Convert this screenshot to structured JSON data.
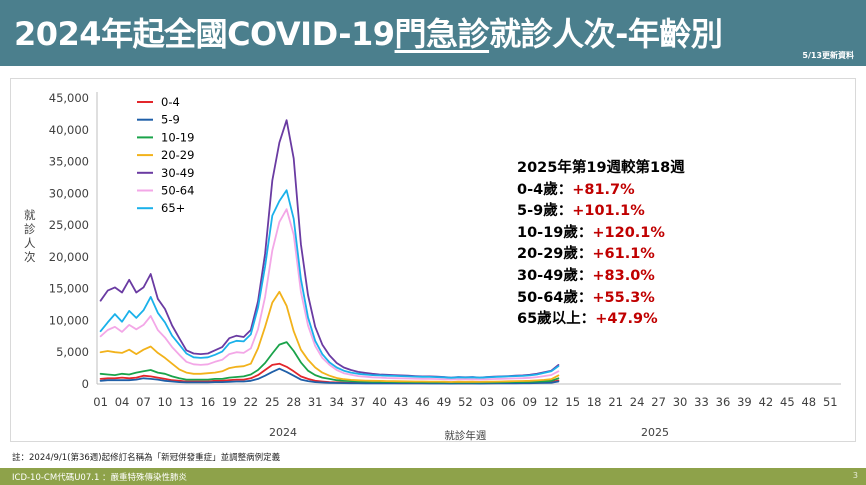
{
  "header": {
    "title_pre": "2024年起全國COVID-19",
    "title_ul": "門急診",
    "title_post": "就診人次-年齡別",
    "update_note": "5/13更新資料",
    "bg_color": "#4b7f8d"
  },
  "summary": {
    "title": "2025年第19週較第18週",
    "rows": [
      {
        "label": "0-4歲：",
        "value": "+81.7%"
      },
      {
        "label": "5-9歲：",
        "value": "+101.1%"
      },
      {
        "label": "10-19歲：",
        "value": "+120.1%"
      },
      {
        "label": "20-29歲：",
        "value": "+61.1%"
      },
      {
        "label": "30-49歲：",
        "value": "+83.0%"
      },
      {
        "label": "50-64歲：",
        "value": "+55.3%"
      },
      {
        "label": "65歲以上：",
        "value": "+47.9%"
      }
    ]
  },
  "footnote": "註：2024/9/1(第36週)起修訂名稱為「新冠併發重症」並調整病例定義",
  "footer": {
    "text": "ICD-10-CM代碼U07.1 ：嚴重特殊傳染性肺炎",
    "page": "3",
    "bg_color": "#8ea24a"
  },
  "chart_data": {
    "type": "line",
    "ylabel": "就診人次",
    "xlabel": "就診年週",
    "year_labels": [
      "2024",
      "2025"
    ],
    "y_ticks": [
      "0",
      "5,000",
      "10,000",
      "15,000",
      "20,000",
      "25,000",
      "30,000",
      "35,000",
      "40,000",
      "45,000"
    ],
    "ylim": [
      0,
      45000
    ],
    "x_tick_labels": [
      "01",
      "04",
      "07",
      "10",
      "13",
      "16",
      "19",
      "22",
      "25",
      "28",
      "31",
      "34",
      "37",
      "40",
      "43",
      "46",
      "49",
      "52",
      "03",
      "06",
      "09",
      "12",
      "15",
      "18",
      "21",
      "24",
      "27",
      "30",
      "33",
      "36",
      "39",
      "42",
      "45",
      "48",
      "51"
    ],
    "legend_position": "top-left",
    "series": [
      {
        "name": "0-4",
        "color": "#e3262b",
        "values": [
          800,
          900,
          900,
          1000,
          900,
          1000,
          1300,
          1200,
          1000,
          800,
          600,
          500,
          400,
          400,
          400,
          400,
          500,
          500,
          600,
          700,
          700,
          900,
          1400,
          2200,
          3000,
          3200,
          2700,
          2000,
          1200,
          800,
          500,
          400,
          300,
          250,
          200,
          180,
          170,
          160,
          150,
          140,
          140,
          140,
          130,
          130,
          130,
          130,
          120,
          120,
          120,
          100,
          120,
          110,
          120,
          100,
          120,
          130,
          140,
          150,
          160,
          160,
          180,
          200,
          250,
          300,
          550
        ]
      },
      {
        "name": "5-9",
        "color": "#1f5fa8",
        "values": [
          500,
          600,
          600,
          600,
          600,
          700,
          900,
          800,
          700,
          500,
          400,
          300,
          250,
          250,
          250,
          250,
          300,
          300,
          350,
          400,
          400,
          500,
          800,
          1300,
          1900,
          2400,
          1900,
          1300,
          700,
          450,
          300,
          230,
          190,
          160,
          140,
          130,
          120,
          110,
          100,
          100,
          100,
          90,
          90,
          90,
          90,
          90,
          80,
          80,
          80,
          70,
          80,
          80,
          80,
          70,
          80,
          90,
          100,
          110,
          110,
          120,
          130,
          150,
          170,
          200,
          400
        ]
      },
      {
        "name": "10-19",
        "color": "#1aa34a",
        "values": [
          1600,
          1500,
          1400,
          1600,
          1500,
          1800,
          2000,
          2200,
          1800,
          1600,
          1200,
          900,
          700,
          700,
          700,
          700,
          800,
          800,
          1000,
          1100,
          1200,
          1500,
          2200,
          3300,
          4800,
          6200,
          6600,
          5200,
          3400,
          2100,
          1400,
          1000,
          800,
          600,
          500,
          450,
          400,
          380,
          350,
          330,
          320,
          310,
          300,
          290,
          280,
          280,
          270,
          260,
          250,
          230,
          250,
          240,
          250,
          230,
          250,
          260,
          280,
          300,
          310,
          320,
          340,
          380,
          430,
          500,
          900
        ]
      },
      {
        "name": "20-29",
        "color": "#f2b21b",
        "values": [
          5000,
          5200,
          5000,
          4900,
          5400,
          4700,
          5400,
          5900,
          4900,
          4100,
          3200,
          2300,
          1800,
          1600,
          1600,
          1700,
          1800,
          2000,
          2500,
          2700,
          2800,
          3200,
          5600,
          9000,
          12800,
          14500,
          12300,
          8300,
          5400,
          3800,
          2600,
          1800,
          1300,
          950,
          750,
          650,
          580,
          540,
          500,
          480,
          460,
          440,
          420,
          410,
          400,
          390,
          380,
          370,
          360,
          320,
          360,
          340,
          360,
          330,
          360,
          380,
          400,
          430,
          450,
          470,
          500,
          560,
          640,
          750,
          1350
        ]
      },
      {
        "name": "30-49",
        "color": "#6a3ba2",
        "values": [
          13100,
          14700,
          15200,
          14400,
          16400,
          14400,
          15200,
          17300,
          13400,
          11800,
          9200,
          7200,
          5300,
          4800,
          4700,
          4800,
          5300,
          5800,
          7200,
          7600,
          7400,
          8500,
          13000,
          20500,
          32000,
          38000,
          41500,
          35500,
          22000,
          14000,
          9000,
          6200,
          4500,
          3300,
          2600,
          2200,
          1900,
          1750,
          1600,
          1500,
          1450,
          1400,
          1350,
          1300,
          1250,
          1200,
          1200,
          1150,
          1100,
          1000,
          1100,
          1050,
          1100,
          1000,
          1100,
          1150,
          1200,
          1250,
          1300,
          1350,
          1450,
          1600,
          1850,
          2100,
          3000
        ]
      },
      {
        "name": "50-64",
        "color": "#f3a7e7",
        "values": [
          7500,
          8500,
          9000,
          8200,
          9300,
          8600,
          9300,
          10700,
          8500,
          7300,
          5800,
          4600,
          3500,
          3100,
          3000,
          3100,
          3500,
          3800,
          4700,
          5000,
          4900,
          5600,
          8600,
          13700,
          21000,
          25500,
          27500,
          23500,
          14500,
          9200,
          6000,
          4100,
          3000,
          2200,
          1700,
          1450,
          1250,
          1150,
          1050,
          1000,
          950,
          920,
          900,
          870,
          840,
          820,
          800,
          780,
          760,
          700,
          760,
          730,
          760,
          700,
          760,
          790,
          820,
          850,
          880,
          920,
          980,
          1080,
          1250,
          1420,
          2000
        ]
      },
      {
        "name": "65+",
        "color": "#1ab1ea",
        "values": [
          8300,
          9700,
          11000,
          9800,
          11500,
          10400,
          11600,
          13700,
          11200,
          9700,
          7600,
          6200,
          4800,
          4200,
          4100,
          4200,
          4600,
          5100,
          6400,
          6800,
          6700,
          7800,
          12000,
          18500,
          26500,
          28800,
          30500,
          26000,
          16500,
          10500,
          6800,
          4700,
          3400,
          2600,
          2100,
          1800,
          1600,
          1500,
          1400,
          1350,
          1300,
          1270,
          1240,
          1200,
          1170,
          1140,
          1110,
          1080,
          1050,
          980,
          1060,
          1020,
          1060,
          990,
          1060,
          1100,
          1150,
          1200,
          1240,
          1280,
          1360,
          1500,
          1750,
          2000,
          2800
        ]
      }
    ]
  }
}
